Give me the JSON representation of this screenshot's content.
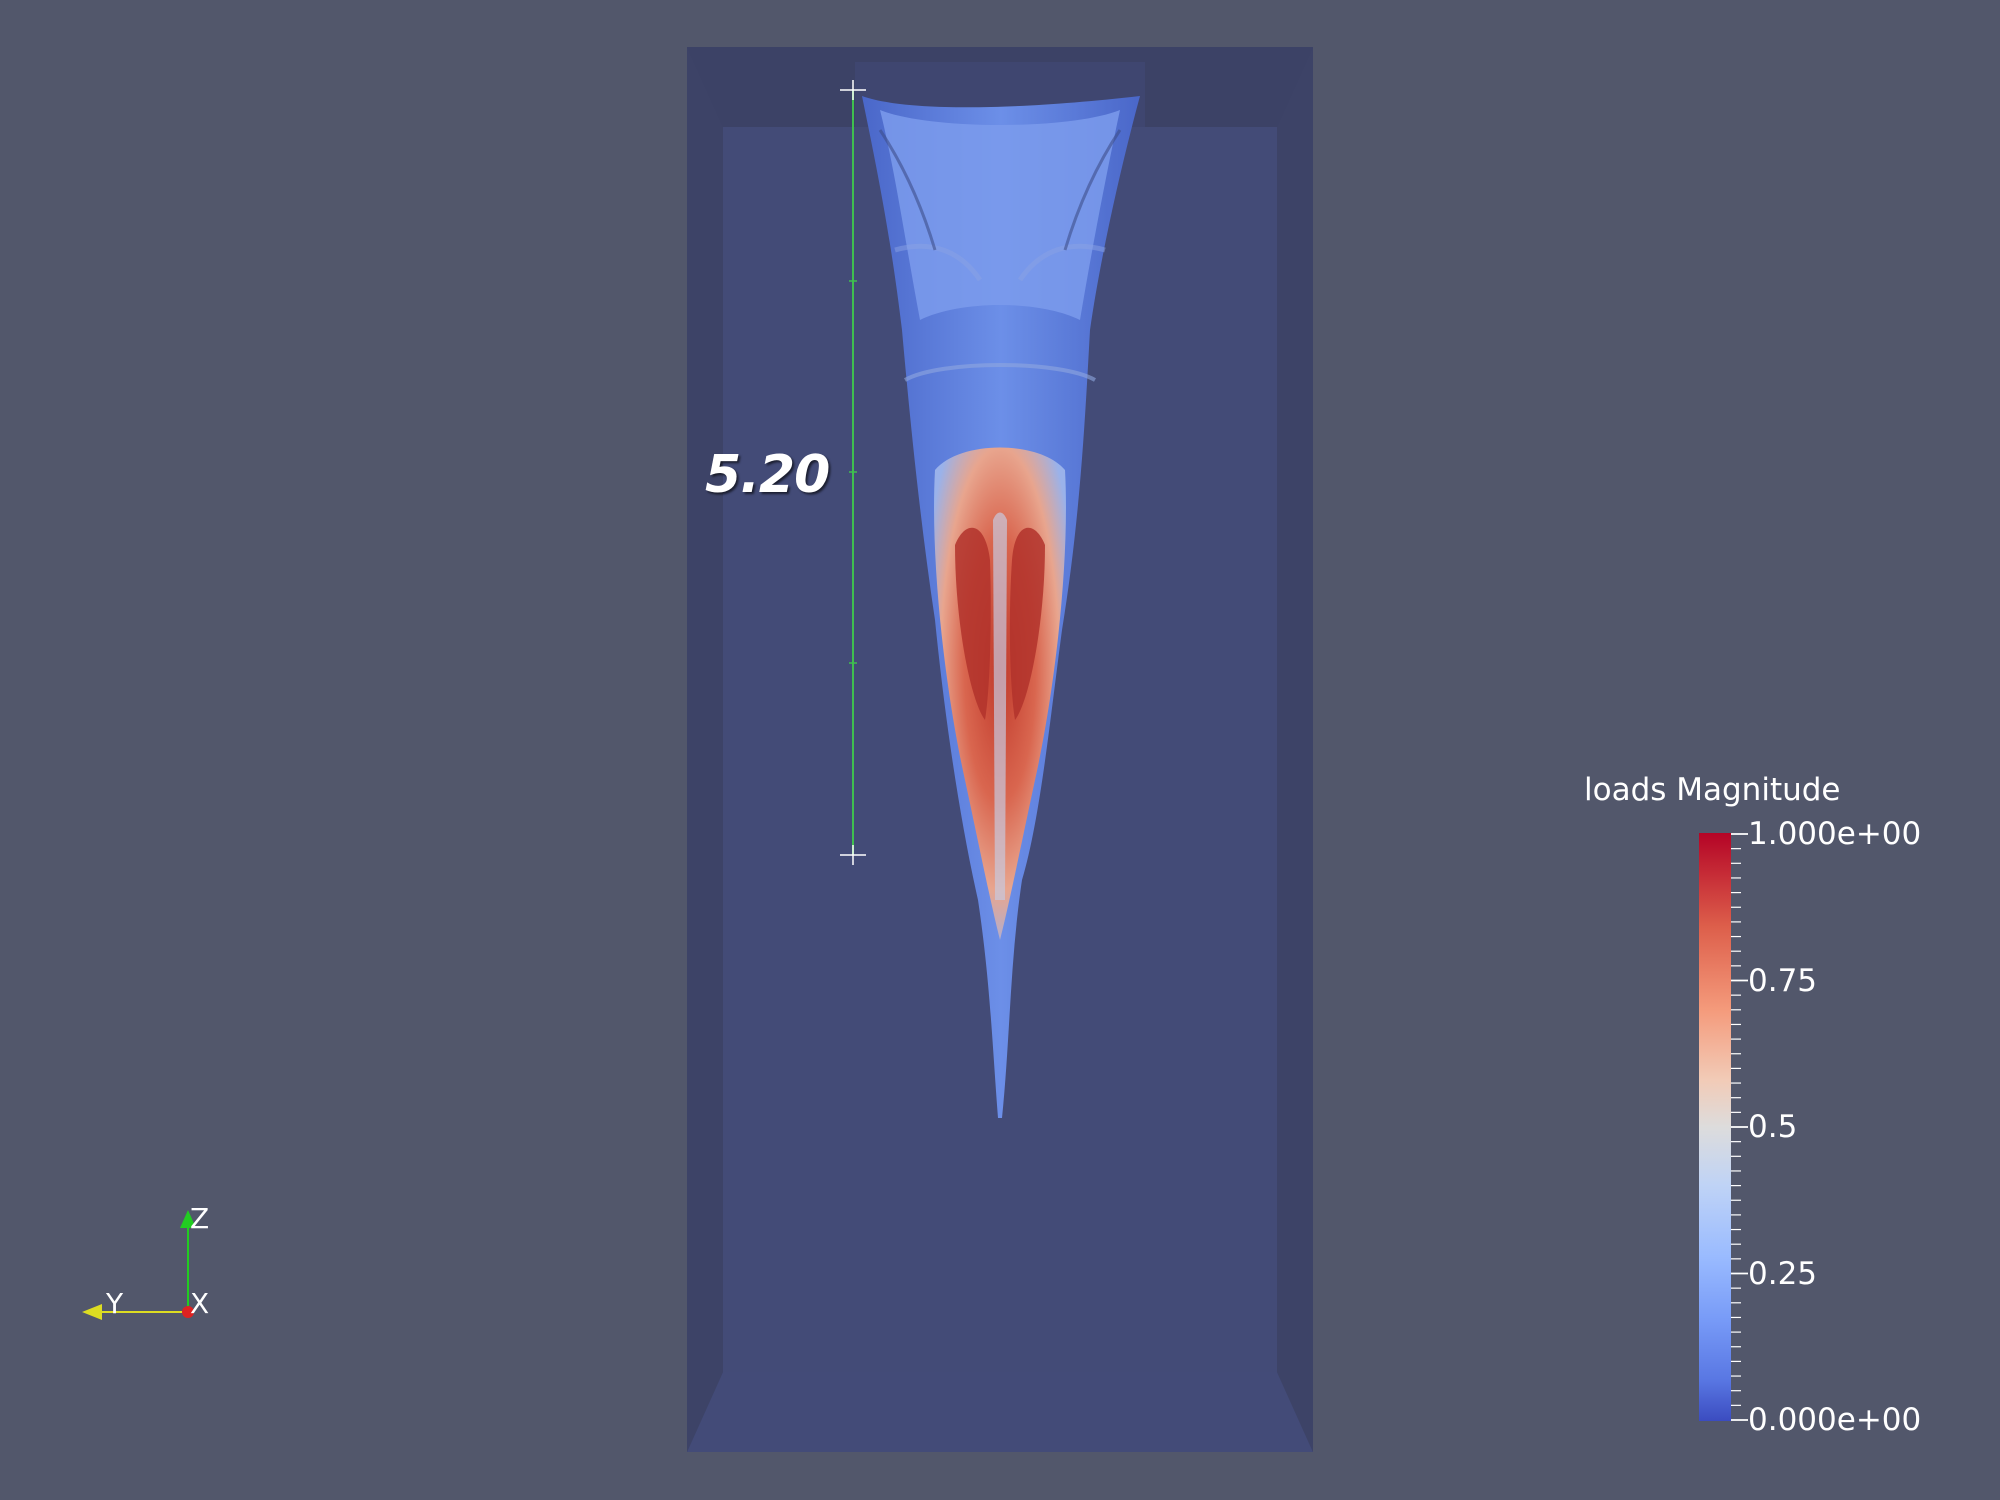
{
  "ruler": {
    "value": "5.20"
  },
  "legend": {
    "title": "loads Magnitude",
    "labels": [
      "1.000e+00",
      "0.75",
      "0.5",
      "0.25",
      "0.000e+00"
    ],
    "colormap": [
      "#b40426",
      "#f49a7b",
      "#dddcdc",
      "#9abbff",
      "#3b4cc0"
    ]
  },
  "axes": {
    "x": "X",
    "y": "Y",
    "z": "Z"
  },
  "colors": {
    "background": "#52576b",
    "box_back": "#434a76",
    "box_frame": "#3d4368",
    "ruler": "#3fbf4f"
  }
}
